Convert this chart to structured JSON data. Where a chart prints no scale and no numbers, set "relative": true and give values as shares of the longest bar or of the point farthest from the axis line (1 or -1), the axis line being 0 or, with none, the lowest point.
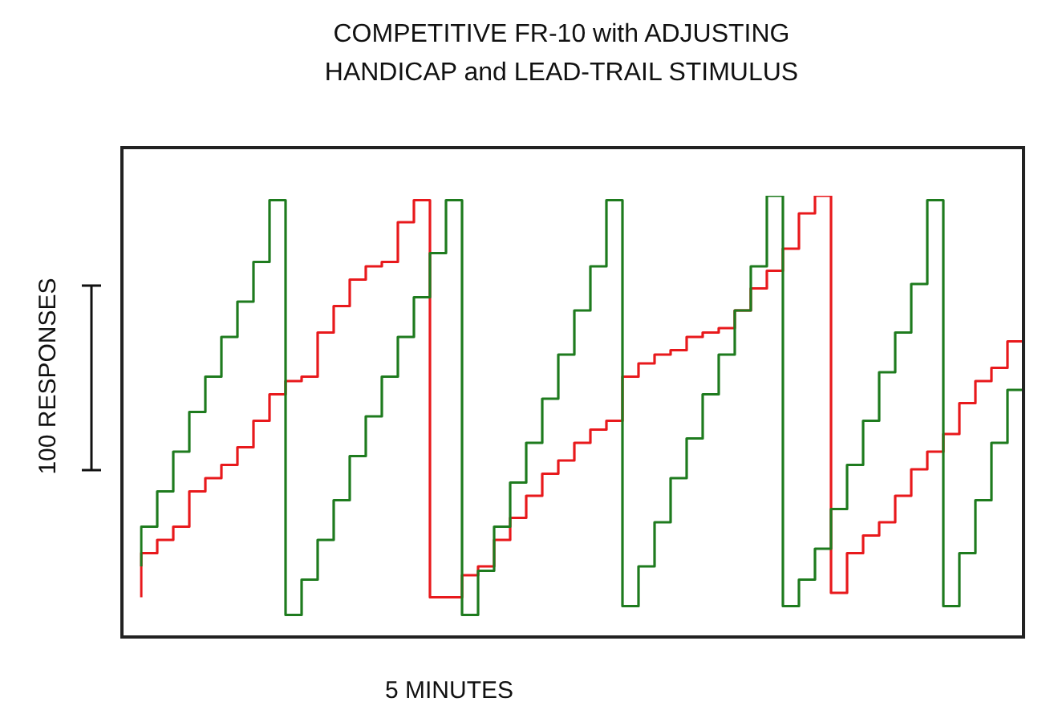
{
  "chart_data": {
    "type": "step",
    "title": "COMPETITIVE FR-10 with ADJUSTING HANDICAP and LEAD-TRAIL STIMULUS",
    "xlabel": "5 MINUTES",
    "ylabel": "100 RESPONSES",
    "relative": true,
    "categories": [
      null,
      null,
      null,
      null,
      null,
      null,
      null,
      null,
      null,
      null,
      null,
      null,
      null,
      null,
      null,
      null,
      null,
      null,
      null,
      null,
      null,
      null,
      null,
      null,
      null,
      null,
      null,
      null,
      null,
      null,
      null,
      null,
      null,
      null,
      null,
      null,
      null,
      null,
      null,
      null,
      null,
      null,
      null,
      null,
      null,
      null,
      null,
      null,
      null,
      null,
      null,
      null,
      null,
      null,
      null,
      null
    ],
    "series": [
      {
        "color": "#1e7b1e",
        "values": [
          0.16,
          0.25,
          0.33,
          0.42,
          0.51,
          0.59,
          0.68,
          0.76,
          0.85,
          0.99,
          0.05,
          0.13,
          0.22,
          0.31,
          0.41,
          0.5,
          0.59,
          0.68,
          0.77,
          0.87,
          0.99,
          0.05,
          0.15,
          0.25,
          0.35,
          0.44,
          0.54,
          0.64,
          0.74,
          0.84,
          0.99,
          0.07,
          0.16,
          0.26,
          0.36,
          0.45,
          0.55,
          0.64,
          0.74,
          0.84,
          1,
          0.07,
          0.13,
          0.2,
          0.29,
          0.39,
          0.49,
          0.6,
          0.69,
          0.8,
          0.99,
          0.07,
          0.19,
          0.31,
          0.44,
          0.56
        ]
      },
      {
        "color": "#e8191c",
        "values": [
          0.09,
          0.19,
          0.22,
          0.25,
          0.33,
          0.36,
          0.39,
          0.43,
          0.49,
          0.55,
          0.58,
          0.59,
          0.69,
          0.75,
          0.81,
          0.84,
          0.85,
          0.94,
          0.99,
          0.09,
          0.09,
          0.14,
          0.16,
          0.22,
          0.27,
          0.32,
          0.37,
          0.4,
          0.44,
          0.47,
          0.49,
          0.59,
          0.62,
          0.64,
          0.65,
          0.68,
          0.69,
          0.7,
          0.74,
          0.79,
          0.83,
          0.88,
          0.96,
          1,
          0.1,
          0.19,
          0.23,
          0.26,
          0.32,
          0.38,
          0.42,
          0.46,
          0.53,
          0.58,
          0.61,
          0.67
        ]
      }
    ]
  }
}
